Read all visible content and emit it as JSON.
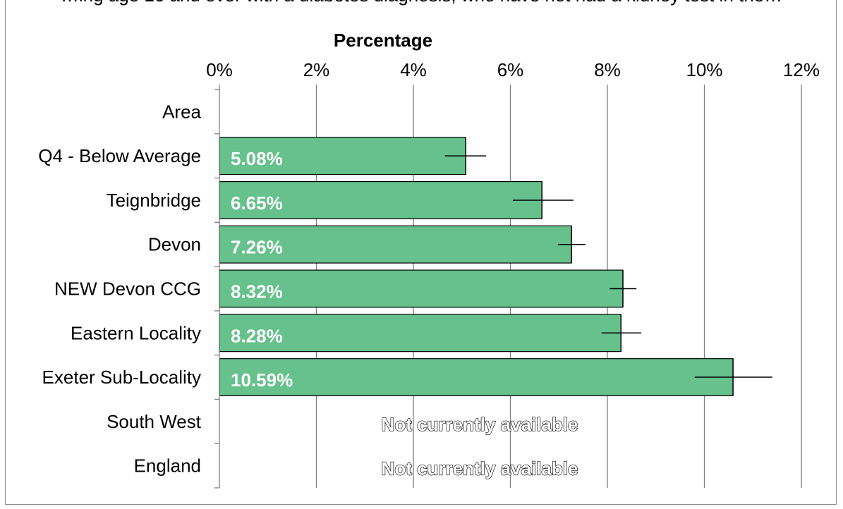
{
  "page": {
    "caption": "…ing age 16 and over with a diabetes diagnosis, who have not had a kidney test in the…"
  },
  "chart_data": {
    "type": "bar",
    "orientation": "horizontal",
    "title": "",
    "xlabel": "Percentage",
    "ylabel": "",
    "xlim": [
      0,
      12
    ],
    "x_ticks": [
      0,
      2,
      4,
      6,
      8,
      10,
      12
    ],
    "x_tick_labels": [
      "0%",
      "2%",
      "4%",
      "6%",
      "8%",
      "10%",
      "12%"
    ],
    "grid": "vertical",
    "categories": [
      "Area",
      "Q4 - Below Average",
      "Teignbridge",
      "Devon",
      "NEW Devon CCG",
      "Eastern Locality",
      "Exeter Sub-Locality",
      "South West",
      "England"
    ],
    "values": [
      null,
      5.08,
      6.65,
      7.26,
      8.32,
      8.28,
      10.59,
      null,
      null
    ],
    "data_labels": [
      "",
      "5.08%",
      "6.65%",
      "7.26%",
      "8.32%",
      "8.28%",
      "10.59%",
      "",
      ""
    ],
    "error_low": [
      null,
      4.65,
      6.05,
      6.98,
      8.05,
      7.88,
      9.8,
      null,
      null
    ],
    "error_high": [
      null,
      5.5,
      7.3,
      7.55,
      8.6,
      8.7,
      11.4,
      null,
      null
    ],
    "unavailable_text": [
      "",
      "",
      "",
      "",
      "",
      "",
      "",
      "Not currently available",
      "Not currently available"
    ],
    "colors": {
      "bar": "#66c18c",
      "bar_border": "#000000",
      "grid": "#7f7f7f",
      "label": "#ffffff"
    }
  }
}
